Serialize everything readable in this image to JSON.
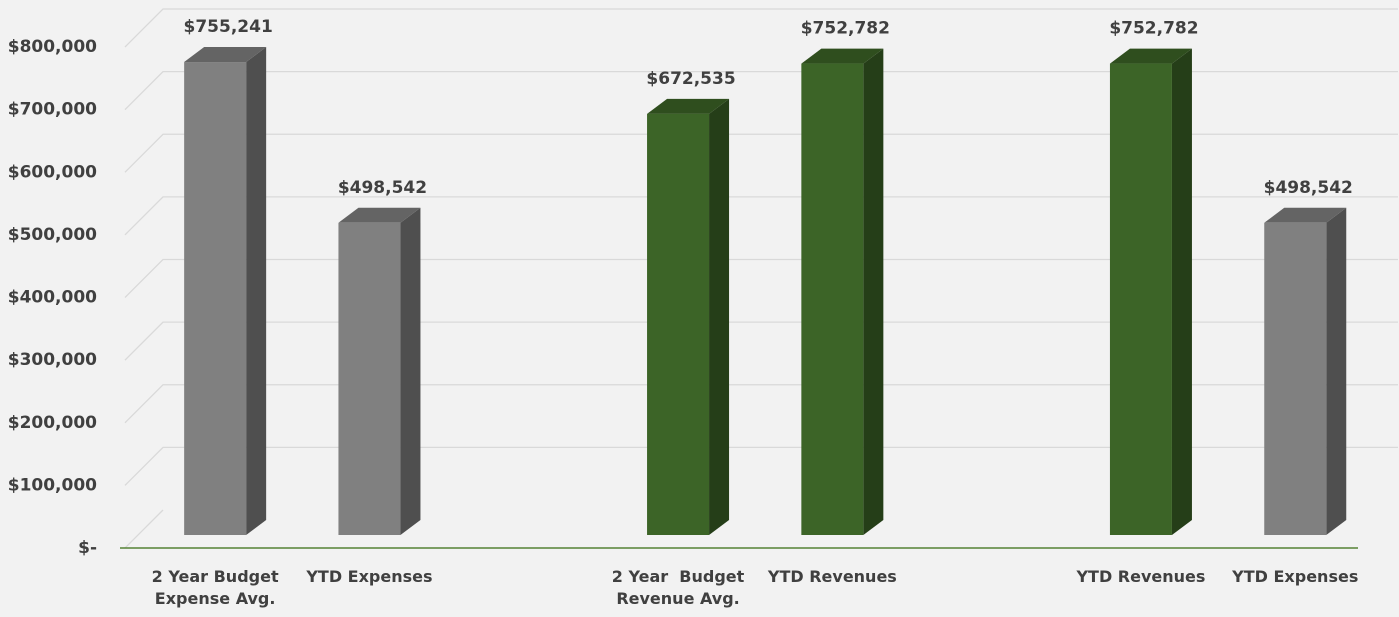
{
  "chart_data": {
    "type": "bar3d",
    "categories": [
      "2 Year Budget Expense Avg.",
      "YTD Expenses",
      null,
      "2 Year  Budget Revenue Avg.",
      "YTD Revenues",
      null,
      "YTD Revenues",
      "YTD Expenses"
    ],
    "values": [
      755241,
      498542,
      null,
      672535,
      752782,
      null,
      752782,
      498542
    ],
    "value_labels": [
      "$755,241",
      "$498,542",
      null,
      "$672,535",
      "$752,782",
      null,
      "$752,782",
      "$498,542"
    ],
    "colors": [
      "#808080",
      "#808080",
      null,
      "#3c6427",
      "#3c6427",
      null,
      "#3c6427",
      "#808080"
    ],
    "ylim": [
      0,
      800000
    ],
    "yticks": [
      {
        "value": 0,
        "label": "$-"
      },
      {
        "value": 100000,
        "label": "$100,000"
      },
      {
        "value": 200000,
        "label": "$200,000"
      },
      {
        "value": 300000,
        "label": "$300,000"
      },
      {
        "value": 400000,
        "label": "$400,000"
      },
      {
        "value": 500000,
        "label": "$500,000"
      },
      {
        "value": 600000,
        "label": "$600,000"
      },
      {
        "value": 700000,
        "label": "$700,000"
      },
      {
        "value": 800000,
        "label": "$800,000"
      }
    ],
    "grid": true
  }
}
